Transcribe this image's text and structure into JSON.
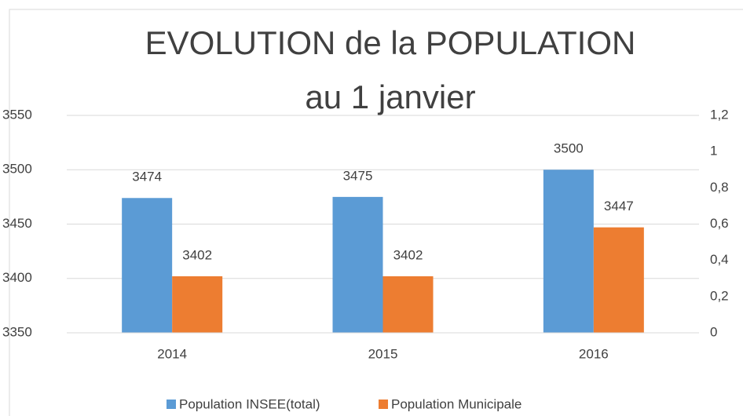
{
  "chart_data": {
    "type": "bar",
    "title": [
      "EVOLUTION de la POPULATION",
      "au 1 janvier"
    ],
    "categories": [
      "2014",
      "2015",
      "2016"
    ],
    "series": [
      {
        "name": "Population INSEE(total)",
        "color": "#5b9bd5",
        "values": [
          3474,
          3475,
          3500
        ]
      },
      {
        "name": "Population Municipale",
        "color": "#ed7d31",
        "values": [
          3402,
          3402,
          3447
        ]
      }
    ],
    "ylim": [
      3350,
      3550
    ],
    "yticks": [
      3350,
      3400,
      3450,
      3500,
      3550
    ],
    "y2lim": [
      0,
      1.2
    ],
    "y2ticks": [
      0,
      {
        "value": 0.2,
        "label": "0,2"
      },
      {
        "value": 0.4,
        "label": "0,4"
      },
      {
        "value": 0.6,
        "label": "0,6"
      },
      {
        "value": 0.8,
        "label": "0,8"
      },
      1,
      {
        "value": 1.2,
        "label": "1,2"
      }
    ],
    "grid": true,
    "legend": "bottom"
  }
}
